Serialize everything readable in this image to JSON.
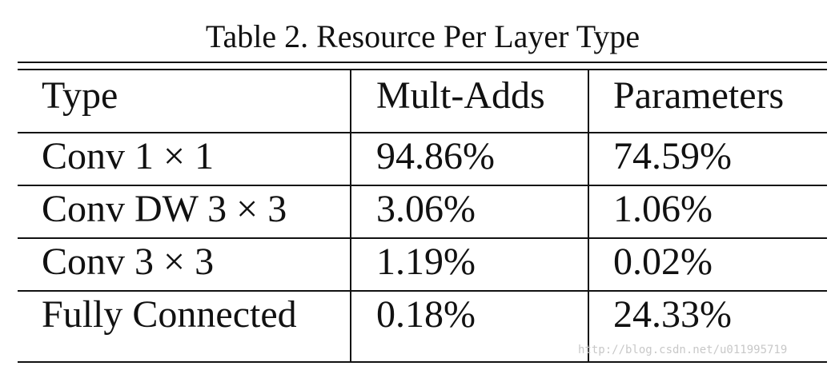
{
  "caption": "Table 2. Resource Per Layer Type",
  "table": {
    "headers": [
      "Type",
      "Mult-Adds",
      "Parameters"
    ],
    "rows": [
      {
        "type": "Conv 1 × 1",
        "mult_adds": "94.86%",
        "parameters": "74.59%"
      },
      {
        "type": "Conv DW 3 × 3",
        "mult_adds": "3.06%",
        "parameters": "1.06%"
      },
      {
        "type": "Conv 3 × 3",
        "mult_adds": "1.19%",
        "parameters": "0.02%"
      },
      {
        "type": "Fully Connected",
        "mult_adds": "0.18%",
        "parameters": "24.33%"
      }
    ]
  },
  "watermark": "http://blog.csdn.net/u011995719"
}
